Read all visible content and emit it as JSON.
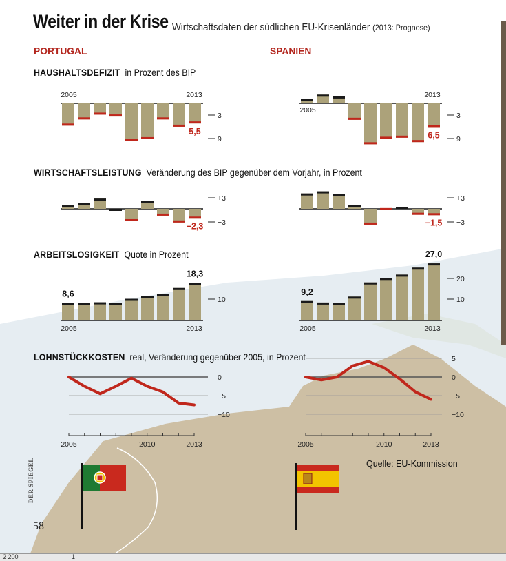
{
  "header": {
    "title": "Weiter in der Krise",
    "subtitle": "Wirtschaftsdaten der südlichen EU-Krisenländer",
    "subtitle_note": "(2013: Prognose)"
  },
  "countries": {
    "left": "PORTUGAL",
    "right": "SPANIEN"
  },
  "sections": {
    "deficit": {
      "title": "HAUSHALTSDEFIZIT",
      "subtitle": "in Prozent des BIP"
    },
    "gdp": {
      "title": "WIRTSCHAFTSLEISTUNG",
      "subtitle": "Veränderung des BIP gegenüber dem Vorjahr, in Prozent"
    },
    "unemp": {
      "title": "ARBEITSLOSIGKEIT",
      "subtitle": "Quote in Prozent"
    },
    "ulc": {
      "title": "LOHNSTÜCKKOSTEN",
      "subtitle": "real, Veränderung gegenüber 2005, in Prozent"
    }
  },
  "colors": {
    "bar": "#aca27a",
    "highlight": "#c0271c",
    "base": "#1a1a1a",
    "line": "#c0271c",
    "map": "#cdbfa4",
    "sea": "#e3ebf0"
  },
  "chart_data": [
    {
      "id": "pt_deficit",
      "type": "bar",
      "title": "HAUSHALTSDEFIZIT Portugal",
      "categories": [
        "2005",
        "2006",
        "2007",
        "2008",
        "2009",
        "2010",
        "2011",
        "2012",
        "2013"
      ],
      "values": [
        -6.1,
        -4.4,
        -3.1,
        -3.6,
        -10.2,
        -9.8,
        -4.4,
        -6.4,
        -5.5
      ],
      "ylim": [
        -12,
        0
      ],
      "ticks": [
        "3",
        "9"
      ],
      "xlabels": [
        "2005",
        "2013"
      ],
      "value_label": "5,5",
      "label_color": "#c0271c"
    },
    {
      "id": "es_deficit",
      "type": "bar",
      "title": "HAUSHALTSDEFIZIT Spanien",
      "categories": [
        "2005",
        "2006",
        "2007",
        "2008",
        "2009",
        "2010",
        "2011",
        "2012",
        "2013"
      ],
      "values": [
        1.3,
        2.4,
        1.9,
        -4.5,
        -11.2,
        -9.7,
        -9.4,
        -10.6,
        -6.5
      ],
      "ylim": [
        -12,
        2.5
      ],
      "ticks": [
        "3",
        "9"
      ],
      "xlabels": [
        "2005",
        "2013"
      ],
      "value_label": "6,5",
      "label_color": "#c0271c"
    },
    {
      "id": "pt_gdp",
      "type": "bar",
      "title": "WIRTSCHAFTSLEISTUNG Portugal",
      "categories": [
        "2005",
        "2006",
        "2007",
        "2008",
        "2009",
        "2010",
        "2011",
        "2012",
        "2013"
      ],
      "values": [
        0.8,
        1.4,
        2.4,
        0.0,
        -2.9,
        1.9,
        -1.6,
        -3.2,
        -2.3
      ],
      "ylim": [
        -4,
        4
      ],
      "ticks": [
        "+3",
        "−3"
      ],
      "value_label": "−2,3",
      "label_color": "#c0271c"
    },
    {
      "id": "es_gdp",
      "type": "bar",
      "title": "WIRTSCHAFTSLEISTUNG Spanien",
      "categories": [
        "2005",
        "2006",
        "2007",
        "2008",
        "2009",
        "2010",
        "2011",
        "2012",
        "2013"
      ],
      "values": [
        3.6,
        4.1,
        3.5,
        0.9,
        -3.7,
        -0.3,
        0.4,
        -1.4,
        -1.5
      ],
      "ylim": [
        -4,
        4
      ],
      "ticks": [
        "+3",
        "−3"
      ],
      "value_label": "−1,5",
      "label_color": "#c0271c"
    },
    {
      "id": "pt_unemp",
      "type": "bar",
      "title": "ARBEITSLOSIGKEIT Portugal",
      "categories": [
        "2005",
        "2006",
        "2007",
        "2008",
        "2009",
        "2010",
        "2011",
        "2012",
        "2013"
      ],
      "values": [
        8.6,
        8.6,
        8.9,
        8.5,
        10.6,
        12.0,
        12.9,
        15.9,
        18.3
      ],
      "ylim": [
        0,
        22
      ],
      "ticks": [
        "10"
      ],
      "xlabels": [
        "2005",
        "2013"
      ],
      "first_label": "8,6",
      "value_label": "18,3",
      "label_color": "#111111"
    },
    {
      "id": "es_unemp",
      "type": "bar",
      "title": "ARBEITSLOSIGKEIT Spanien",
      "categories": [
        "2005",
        "2006",
        "2007",
        "2008",
        "2009",
        "2010",
        "2011",
        "2012",
        "2013"
      ],
      "values": [
        9.2,
        8.5,
        8.3,
        11.3,
        18.0,
        20.1,
        21.7,
        25.0,
        27.0
      ],
      "ylim": [
        0,
        30
      ],
      "ticks": [
        "10",
        "20"
      ],
      "xlabels": [
        "2005",
        "2013"
      ],
      "first_label": "9,2",
      "value_label": "27,0",
      "label_color": "#111111"
    },
    {
      "id": "pt_ulc",
      "type": "line",
      "title": "LOHNSTÜCKKOSTEN Portugal",
      "x": [
        2005,
        2006,
        2007,
        2008,
        2009,
        2010,
        2011,
        2012,
        2013
      ],
      "values": [
        0.0,
        -2.5,
        -4.5,
        -2.5,
        -0.3,
        -2.5,
        -4.0,
        -7.0,
        -7.5
      ],
      "ylim": [
        -11,
        1
      ],
      "ticks": [
        "0",
        "−5",
        "−10"
      ],
      "xlabels": [
        "2005",
        "2010",
        "2013"
      ]
    },
    {
      "id": "es_ulc",
      "type": "line",
      "title": "LOHNSTÜCKKOSTEN Spanien",
      "x": [
        2005,
        2006,
        2007,
        2008,
        2009,
        2010,
        2011,
        2012,
        2013
      ],
      "values": [
        0.0,
        -0.8,
        0.0,
        3.0,
        4.2,
        2.5,
        -0.5,
        -4.0,
        -6.0
      ],
      "ylim": [
        -11,
        6
      ],
      "ticks": [
        "5",
        "0",
        "−5",
        "−10"
      ],
      "xlabels": [
        "2005",
        "2010",
        "2013"
      ]
    }
  ],
  "footer": {
    "source": "Quelle: EU-Kommission",
    "page_number": "58",
    "publisher": "DER SPIEGEL",
    "status_left": "2 200",
    "status_right": "1"
  }
}
